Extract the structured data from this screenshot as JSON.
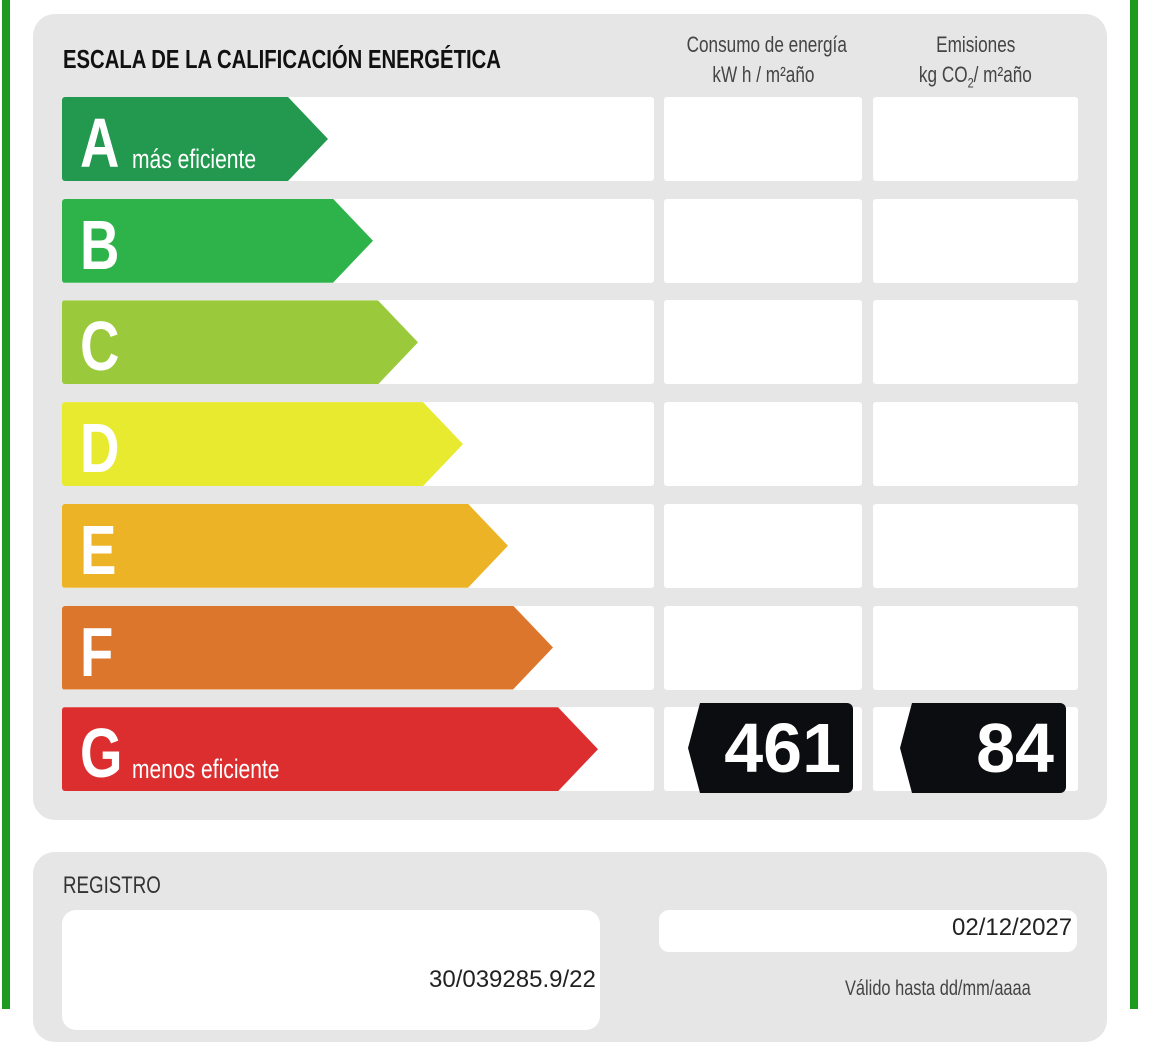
{
  "label": {
    "title": "ESCALA DE LA CALIFICACIÓN ENERGÉTICA",
    "col_energy": {
      "line1": "Consumo de energía",
      "line2": "kW h / m²año"
    },
    "col_emissions": {
      "line1": "Emisiones",
      "line2_pre": "kg CO",
      "line2_sub": "2",
      "line2_post": "/ m²año"
    },
    "grades": [
      {
        "letter": "A",
        "subtitle": "más eficiente",
        "color": "#23984f"
      },
      {
        "letter": "B",
        "subtitle": "",
        "color": "#2db34a"
      },
      {
        "letter": "C",
        "subtitle": "",
        "color": "#9aca3c"
      },
      {
        "letter": "D",
        "subtitle": "",
        "color": "#e8ea30"
      },
      {
        "letter": "E",
        "subtitle": "",
        "color": "#edb327"
      },
      {
        "letter": "F",
        "subtitle": "",
        "color": "#dd762d"
      },
      {
        "letter": "G",
        "subtitle": "menos eficiente",
        "color": "#dc2d2f"
      }
    ],
    "rating": "G",
    "energy_value": "461",
    "emissions_value": "84"
  },
  "registro": {
    "label": "REGISTRO",
    "number": "30/039285.9/22",
    "valid_until": "02/12/2027",
    "valid_label": "Válido hasta dd/mm/aaaa"
  },
  "colors": {
    "border": "#1e9a1e",
    "panel": "#e6e6e6"
  }
}
